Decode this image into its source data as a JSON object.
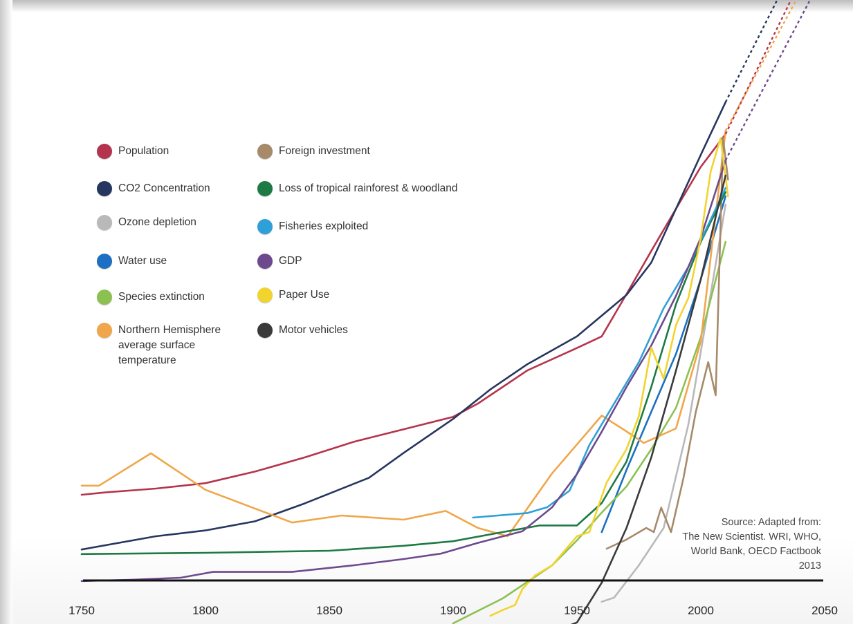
{
  "chart_data": {
    "type": "line",
    "title": "",
    "xlabel": "",
    "ylabel": "",
    "xlim": [
      1750,
      2050
    ],
    "x_ticks": [
      "1750",
      "1800",
      "1850",
      "1900",
      "1950",
      "2000",
      "2050"
    ],
    "grid": false,
    "y_axis_labeled": false,
    "legend_position": "top-left",
    "note": "Values are relative indices (no y-axis scale shown); dashed lines show projections to 2050.",
    "series": [
      {
        "name": "Population",
        "color": "#b5344d",
        "points": [
          [
            1750,
            0.14
          ],
          [
            1760,
            0.146
          ],
          [
            1780,
            0.155
          ],
          [
            1800,
            0.168
          ],
          [
            1820,
            0.196
          ],
          [
            1840,
            0.23
          ],
          [
            1860,
            0.268
          ],
          [
            1880,
            0.298
          ],
          [
            1900,
            0.328
          ],
          [
            1910,
            0.36
          ],
          [
            1920,
            0.4
          ],
          [
            1930,
            0.44
          ],
          [
            1950,
            0.494
          ],
          [
            1960,
            0.522
          ],
          [
            1970,
            0.624
          ],
          [
            1980,
            0.728
          ],
          [
            1990,
            0.83
          ],
          [
            2000,
            0.931
          ],
          [
            2010,
            1.01
          ]
        ],
        "projection": [
          [
            2010,
            1.01
          ],
          [
            2050,
            1.5
          ]
        ]
      },
      {
        "name": "CO2 Concentration",
        "color": "#27365f",
        "points": [
          [
            1750,
            0.008
          ],
          [
            1780,
            0.04
          ],
          [
            1800,
            0.054
          ],
          [
            1820,
            0.076
          ],
          [
            1840,
            0.119
          ],
          [
            1866,
            0.181
          ],
          [
            1880,
            0.241
          ],
          [
            1900,
            0.323
          ],
          [
            1915,
            0.394
          ],
          [
            1930,
            0.455
          ],
          [
            1950,
            0.522
          ],
          [
            1970,
            0.622
          ],
          [
            1980,
            0.7
          ],
          [
            1990,
            0.83
          ],
          [
            2000,
            0.96
          ],
          [
            2010,
            1.087
          ]
        ],
        "projection": [
          [
            2010,
            1.087
          ],
          [
            2050,
            1.56
          ]
        ]
      },
      {
        "name": "Ozone depletion",
        "color": "#b9b9b9",
        "points": [
          [
            1960,
            -0.118
          ],
          [
            1965,
            -0.108
          ],
          [
            1975,
            -0.03
          ],
          [
            1985,
            0.06
          ],
          [
            1995,
            0.31
          ],
          [
            2005,
            0.66
          ],
          [
            2010,
            0.84
          ]
        ]
      },
      {
        "name": "Water use",
        "color": "#1c6fc2",
        "points": [
          [
            1960,
            0.05
          ],
          [
            1970,
            0.2
          ],
          [
            1980,
            0.34
          ],
          [
            1990,
            0.48
          ],
          [
            2000,
            0.66
          ],
          [
            2010,
            0.86
          ]
        ]
      },
      {
        "name": "Species extinction",
        "color": "#8cc152",
        "points": [
          [
            1900,
            -0.17
          ],
          [
            1920,
            -0.11
          ],
          [
            1940,
            -0.03
          ],
          [
            1950,
            0.03
          ],
          [
            1960,
            0.097
          ],
          [
            1970,
            0.16
          ],
          [
            1980,
            0.25
          ],
          [
            1990,
            0.35
          ],
          [
            2000,
            0.52
          ],
          [
            2010,
            0.75
          ]
        ]
      },
      {
        "name": "Northern Hemisphere average surface temperature",
        "color": "#f0a64a",
        "points": [
          [
            1750,
            0.162
          ],
          [
            1757,
            0.162
          ],
          [
            1778,
            0.24
          ],
          [
            1800,
            0.152
          ],
          [
            1835,
            0.073
          ],
          [
            1855,
            0.09
          ],
          [
            1880,
            0.08
          ],
          [
            1897,
            0.101
          ],
          [
            1910,
            0.06
          ],
          [
            1922,
            0.04
          ],
          [
            1940,
            0.192
          ],
          [
            1960,
            0.331
          ],
          [
            1972,
            0.285
          ],
          [
            1977,
            0.265
          ],
          [
            1990,
            0.3
          ],
          [
            2000,
            0.51
          ],
          [
            2010,
            1.018
          ]
        ],
        "projection": [
          [
            2010,
            1.018
          ],
          [
            2050,
            1.46
          ]
        ]
      },
      {
        "name": "Foreign investment",
        "color": "#a68a6a",
        "points": [
          [
            1962,
            0.01
          ],
          [
            1970,
            0.032
          ],
          [
            1978,
            0.06
          ],
          [
            1981,
            0.05
          ],
          [
            1984,
            0.109
          ],
          [
            1988,
            0.05
          ],
          [
            1993,
            0.18
          ],
          [
            1998,
            0.34
          ],
          [
            2003,
            0.46
          ],
          [
            2006,
            0.38
          ],
          [
            2009,
            1.0
          ],
          [
            2011,
            0.9
          ]
        ]
      },
      {
        "name": "Loss of tropical rainforest & woodland",
        "color": "#1e7a44",
        "points": [
          [
            1750,
            -0.003
          ],
          [
            1800,
            0.0
          ],
          [
            1850,
            0.005
          ],
          [
            1880,
            0.017
          ],
          [
            1900,
            0.028
          ],
          [
            1920,
            0.05
          ],
          [
            1935,
            0.066
          ],
          [
            1950,
            0.066
          ],
          [
            1960,
            0.12
          ],
          [
            1970,
            0.22
          ],
          [
            1980,
            0.4
          ],
          [
            1990,
            0.6
          ],
          [
            2000,
            0.75
          ],
          [
            2010,
            0.87
          ]
        ]
      },
      {
        "name": "Fisheries exploited",
        "color": "#2f9fd8",
        "points": [
          [
            1908,
            0.085
          ],
          [
            1930,
            0.096
          ],
          [
            1938,
            0.11
          ],
          [
            1947,
            0.15
          ],
          [
            1955,
            0.26
          ],
          [
            1965,
            0.36
          ],
          [
            1975,
            0.46
          ],
          [
            1985,
            0.59
          ],
          [
            1995,
            0.69
          ],
          [
            2010,
            0.88
          ]
        ]
      },
      {
        "name": "GDP",
        "color": "#6c4a8d",
        "points": [
          [
            1750,
            -0.068
          ],
          [
            1770,
            -0.065
          ],
          [
            1790,
            -0.06
          ],
          [
            1803,
            -0.046
          ],
          [
            1835,
            -0.046
          ],
          [
            1860,
            -0.03
          ],
          [
            1880,
            -0.015
          ],
          [
            1895,
            -0.002
          ],
          [
            1910,
            0.024
          ],
          [
            1928,
            0.052
          ],
          [
            1940,
            0.11
          ],
          [
            1950,
            0.19
          ],
          [
            1960,
            0.292
          ],
          [
            1970,
            0.4
          ],
          [
            1980,
            0.5
          ],
          [
            1990,
            0.62
          ],
          [
            2000,
            0.76
          ],
          [
            2010,
            0.947
          ]
        ],
        "projection": [
          [
            2010,
            0.947
          ],
          [
            2050,
            1.4
          ]
        ]
      },
      {
        "name": "Paper Use",
        "color": "#f2d42e",
        "points": [
          [
            1915,
            -0.152
          ],
          [
            1920,
            -0.138
          ],
          [
            1925,
            -0.126
          ],
          [
            1928,
            -0.087
          ],
          [
            1933,
            -0.055
          ],
          [
            1940,
            -0.03
          ],
          [
            1950,
            0.04
          ],
          [
            1955,
            0.05
          ],
          [
            1962,
            0.17
          ],
          [
            1970,
            0.25
          ],
          [
            1975,
            0.33
          ],
          [
            1980,
            0.495
          ],
          [
            1985,
            0.42
          ],
          [
            1990,
            0.55
          ],
          [
            1995,
            0.615
          ],
          [
            2000,
            0.76
          ],
          [
            2004,
            0.92
          ],
          [
            2008,
            1.0
          ],
          [
            2011,
            0.86
          ]
        ]
      },
      {
        "name": "Motor vehicles",
        "color": "#3a3a3a",
        "points": [
          [
            1908,
            -0.198
          ],
          [
            1930,
            -0.198
          ],
          [
            1938,
            -0.196
          ],
          [
            1950,
            -0.168
          ],
          [
            1960,
            -0.072
          ],
          [
            1970,
            0.06
          ],
          [
            1980,
            0.23
          ],
          [
            1990,
            0.44
          ],
          [
            2000,
            0.66
          ],
          [
            2010,
            0.91
          ]
        ]
      }
    ]
  },
  "legend_columns": [
    {
      "items": [
        {
          "label": "Population",
          "color": "#b5344d"
        },
        {
          "label": "CO2 Concentration",
          "color": "#27365f"
        },
        {
          "label": "Ozone depletion",
          "color": "#b9b9b9"
        },
        {
          "label": "Water use",
          "color": "#1c6fc2"
        },
        {
          "label": "Species extinction",
          "color": "#8cc152"
        },
        {
          "label": "Northern Hemisphere average surface temperature",
          "color": "#f0a64a"
        }
      ]
    },
    {
      "items": [
        {
          "label": "Foreign investment",
          "color": "#a68a6a"
        },
        {
          "label": "Loss of tropical rainforest & woodland",
          "color": "#1e7a44"
        },
        {
          "label": "Fisheries exploited",
          "color": "#2f9fd8"
        },
        {
          "label": "GDP",
          "color": "#6c4a8d"
        },
        {
          "label": "Paper Use",
          "color": "#f2d42e"
        },
        {
          "label": "Motor vehicles",
          "color": "#3a3a3a"
        }
      ]
    }
  ],
  "source": {
    "line1": "Source: Adapted from:",
    "line2": "The New Scientist. WRI, WHO,",
    "line3": "World Bank, OECD Factbook",
    "line4": "2013"
  }
}
